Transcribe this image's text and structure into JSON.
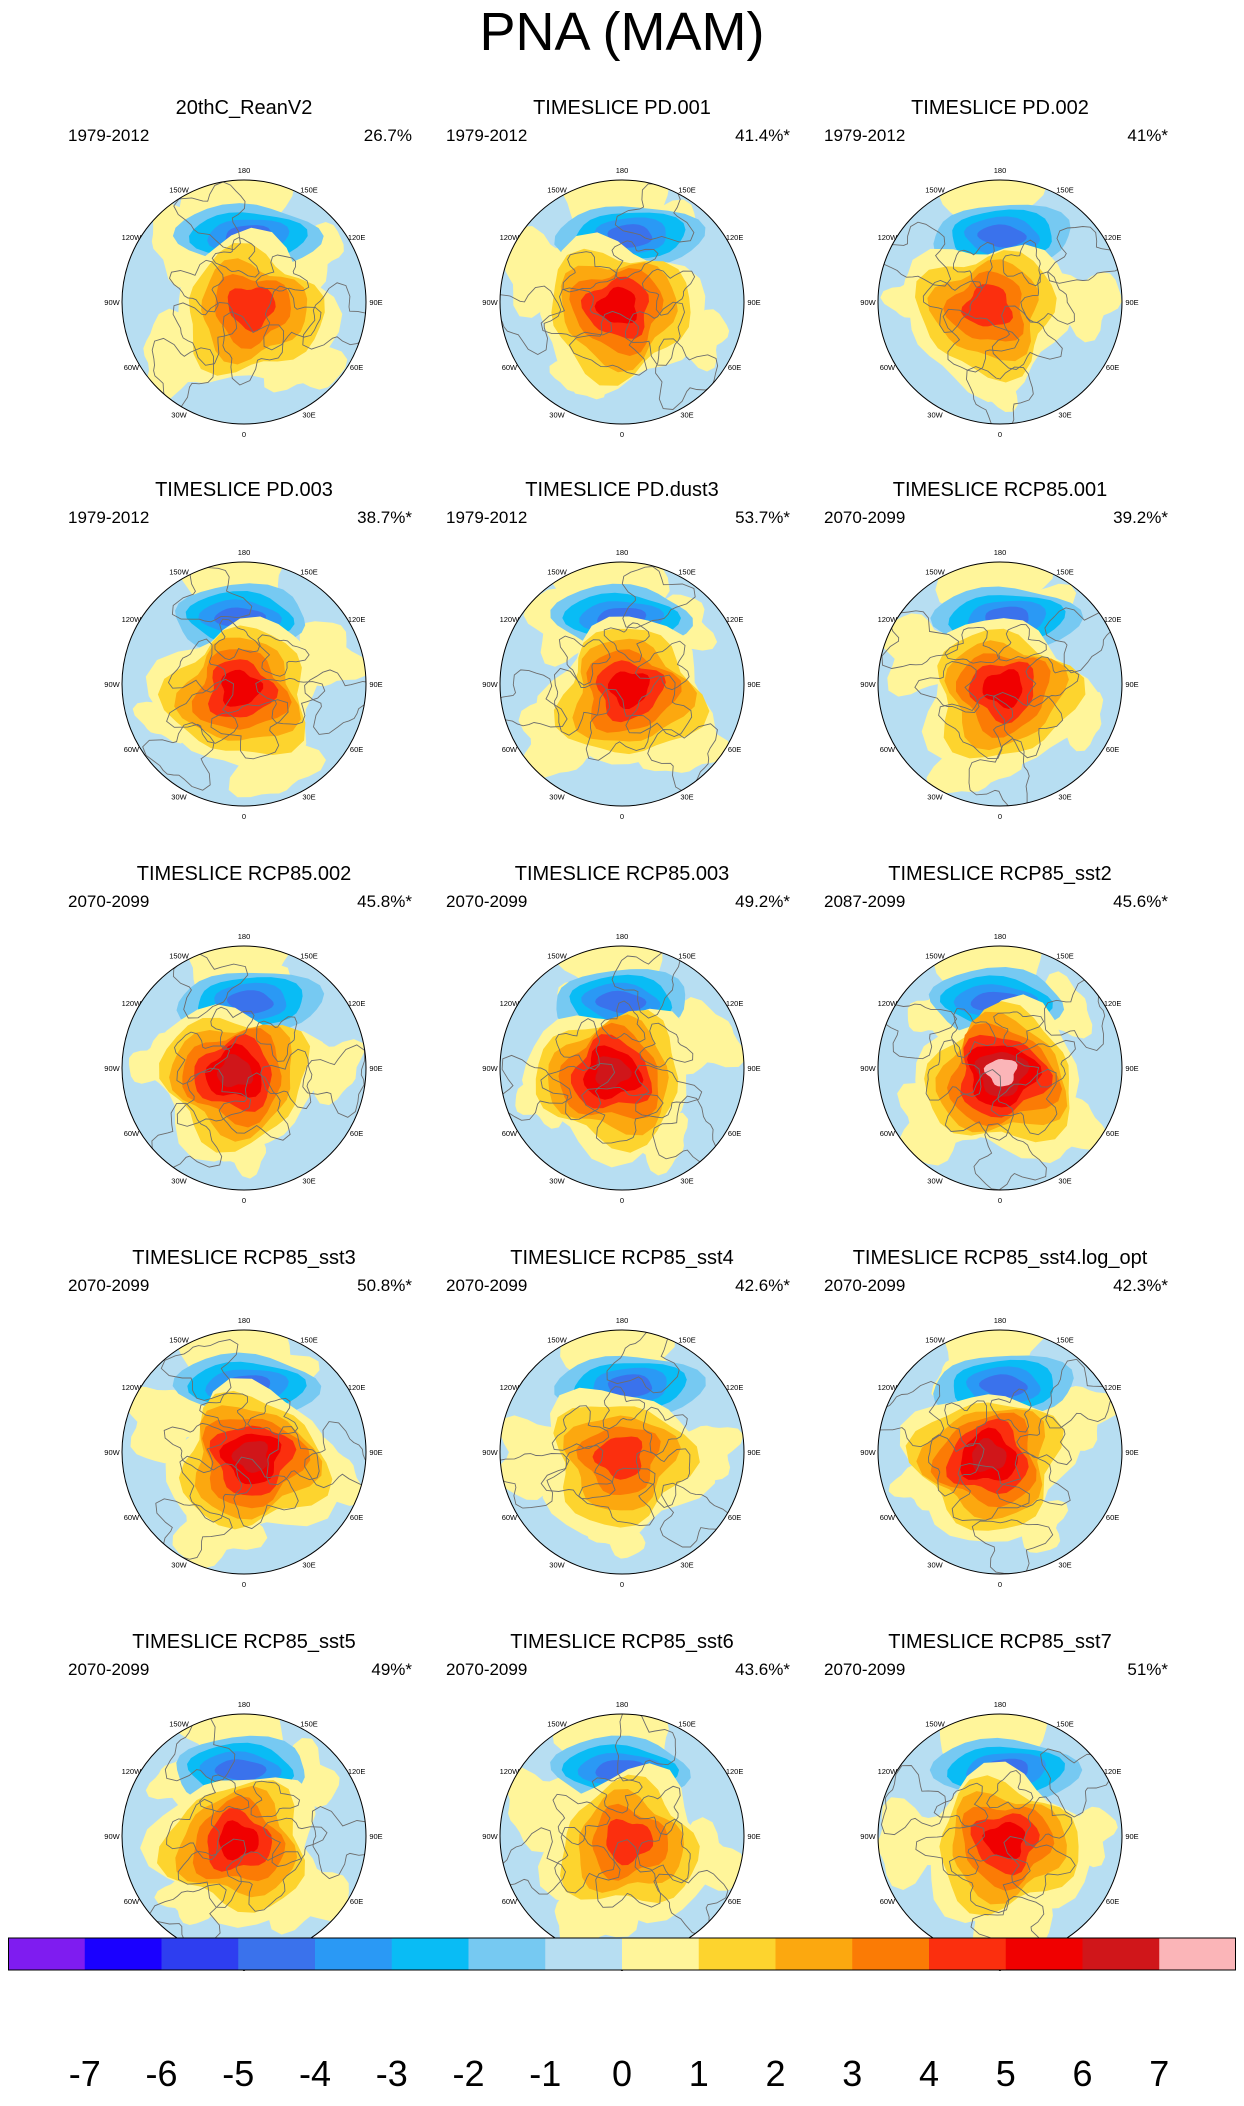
{
  "figure": {
    "title": "PNA (MAM)"
  },
  "lon_labels": [
    "180",
    "150E",
    "120E",
    "90E",
    "60E",
    "30E",
    "0",
    "30W",
    "60W",
    "90W",
    "120W",
    "150W"
  ],
  "panels": [
    {
      "title": "20thC_ReanV2",
      "period": "1979-2012",
      "variance": "26.7%"
    },
    {
      "title": "TIMESLICE PD.001",
      "period": "1979-2012",
      "variance": "41.4%*"
    },
    {
      "title": "TIMESLICE PD.002",
      "period": "1979-2012",
      "variance": "41%*"
    },
    {
      "title": "TIMESLICE PD.003",
      "period": "1979-2012",
      "variance": "38.7%*"
    },
    {
      "title": "TIMESLICE PD.dust3",
      "period": "1979-2012",
      "variance": "53.7%*"
    },
    {
      "title": "TIMESLICE RCP85.001",
      "period": "2070-2099",
      "variance": "39.2%*"
    },
    {
      "title": "TIMESLICE RCP85.002",
      "period": "2070-2099",
      "variance": "45.8%*"
    },
    {
      "title": "TIMESLICE RCP85.003",
      "period": "2070-2099",
      "variance": "49.2%*"
    },
    {
      "title": "TIMESLICE RCP85_sst2",
      "period": "2087-2099",
      "variance": "45.6%*"
    },
    {
      "title": "TIMESLICE RCP85_sst3",
      "period": "2070-2099",
      "variance": "50.8%*"
    },
    {
      "title": "TIMESLICE RCP85_sst4",
      "period": "2070-2099",
      "variance": "42.6%*"
    },
    {
      "title": "TIMESLICE RCP85_sst4.log_opt",
      "period": "2070-2099",
      "variance": "42.3%*"
    },
    {
      "title": "TIMESLICE RCP85_sst5",
      "period": "2070-2099",
      "variance": "49%*"
    },
    {
      "title": "TIMESLICE RCP85_sst6",
      "period": "2070-2099",
      "variance": "43.6%*"
    },
    {
      "title": "TIMESLICE RCP85_sst7",
      "period": "2070-2099",
      "variance": "51%*"
    }
  ],
  "colorbar": {
    "labels": [
      "-7",
      "-6",
      "-5",
      "-4",
      "-3",
      "-2",
      "-1",
      "0",
      "1",
      "2",
      "3",
      "4",
      "5",
      "6",
      "7"
    ],
    "colors": [
      "#7f1cf0",
      "#1a00ff",
      "#2e3ef0",
      "#3a72ec",
      "#2a99f5",
      "#09bcf5",
      "#76c9f2",
      "#b7def2",
      "#fff59a",
      "#fdd42e",
      "#fca80f",
      "#fb7b05",
      "#fb2f0e",
      "#f00000",
      "#d0161a",
      "#fbb5b8"
    ]
  }
}
